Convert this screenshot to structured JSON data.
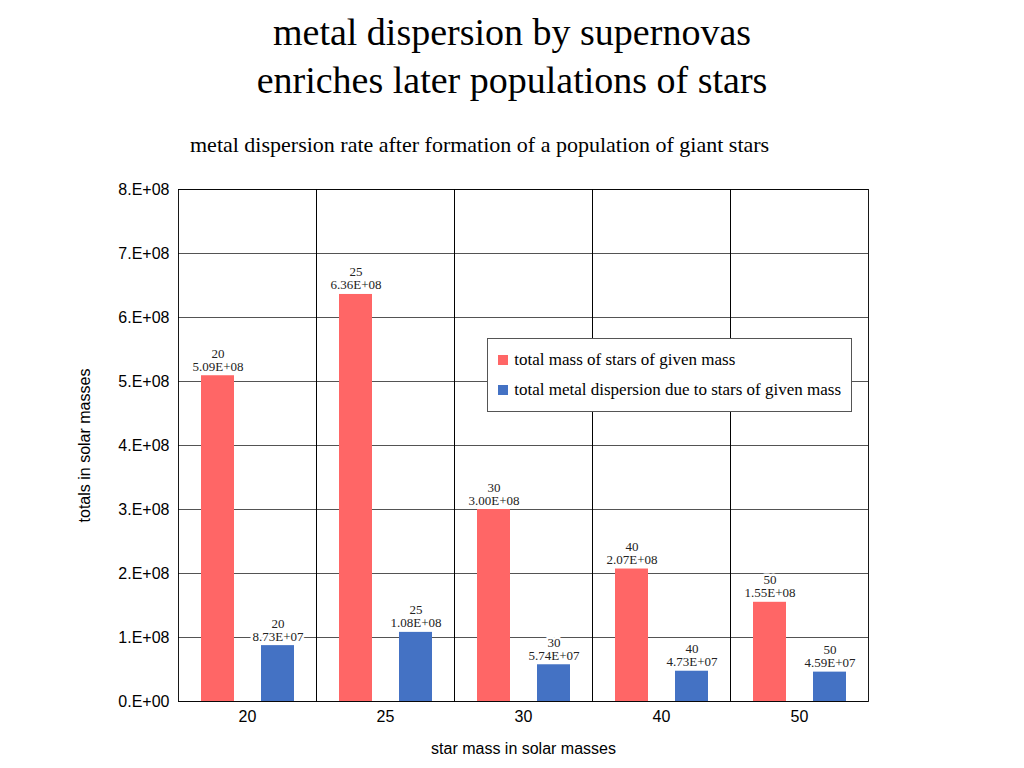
{
  "chart_data": {
    "type": "bar",
    "title": "metal dispersion by supernovas\nenriches later populations of stars",
    "subtitle": "metal dispersion rate after formation of a population of giant stars",
    "x_label": "star mass in solar masses",
    "y_label": "totals in solar masses",
    "categories": [
      20,
      25,
      30,
      40,
      50
    ],
    "series": [
      {
        "name": "total mass of stars of given mass",
        "color": "#ff6666",
        "values": [
          509000000,
          636000000,
          300000000,
          207000000,
          155000000
        ],
        "value_labels": [
          "5.09E+08",
          "6.36E+08",
          "3.00E+08",
          "2.07E+08",
          "1.55E+08"
        ]
      },
      {
        "name": "total metal dispersion due to stars of given mass",
        "color": "#4472c4",
        "values": [
          87300000,
          108000000,
          57400000,
          47300000,
          45900000
        ],
        "value_labels": [
          "8.73E+07",
          "1.08E+08",
          "5.74E+07",
          "4.73E+07",
          "4.59E+07"
        ]
      }
    ],
    "ylim": [
      0,
      800000000
    ],
    "yticks": [
      {
        "value": 0,
        "label": "0.E+00"
      },
      {
        "value": 100000000,
        "label": "1.E+08"
      },
      {
        "value": 200000000,
        "label": "2.E+08"
      },
      {
        "value": 300000000,
        "label": "3.E+08"
      },
      {
        "value": 400000000,
        "label": "4.E+08"
      },
      {
        "value": 500000000,
        "label": "5.E+08"
      },
      {
        "value": 600000000,
        "label": "6.E+08"
      },
      {
        "value": 700000000,
        "label": "7.E+08"
      },
      {
        "value": 800000000,
        "label": "8.E+08"
      }
    ],
    "grid": true,
    "legend": "upper right",
    "data_labels": true
  }
}
